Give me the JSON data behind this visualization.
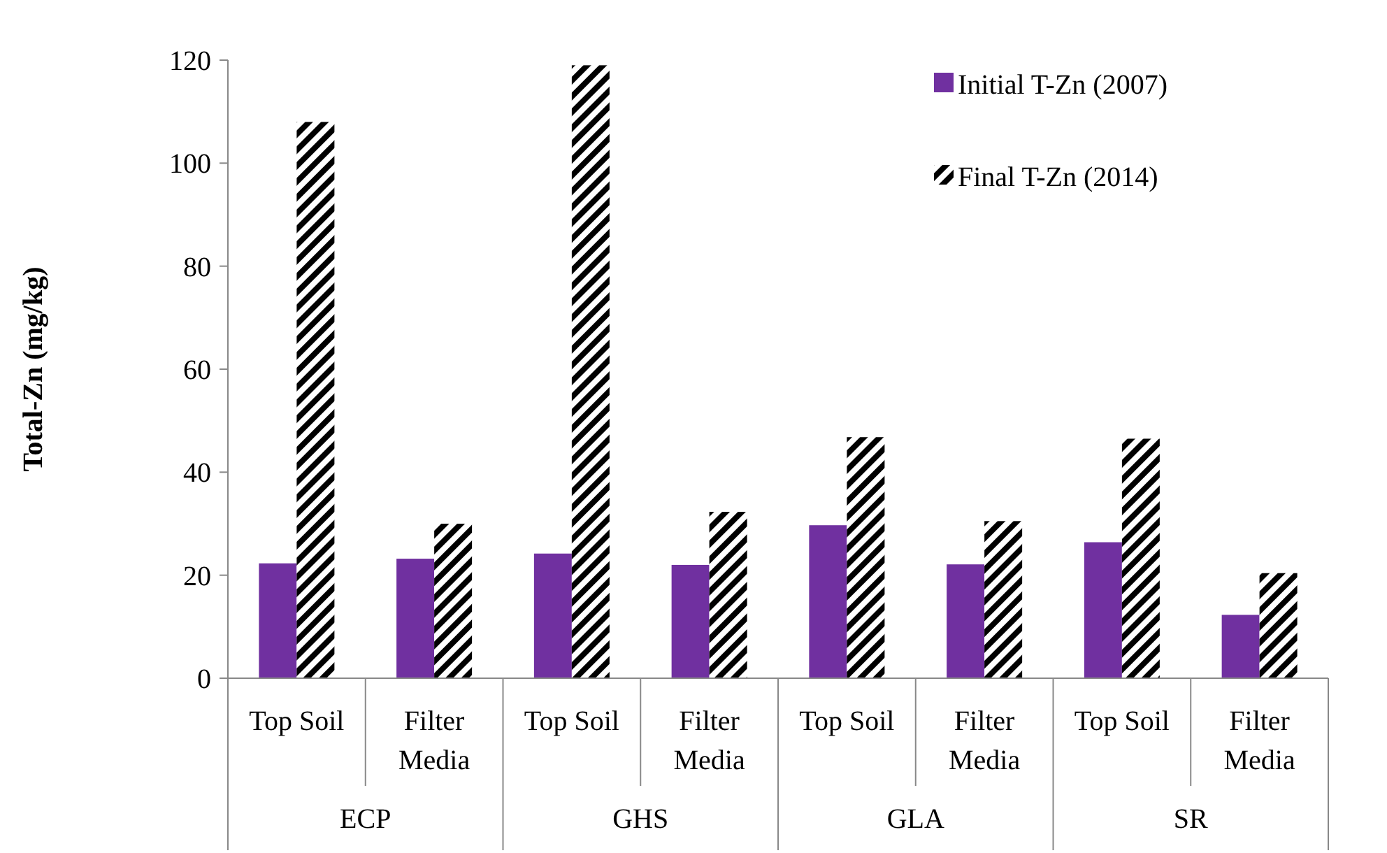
{
  "chart_data": {
    "type": "bar",
    "ylabel": "Total-Zn (mg/kg)",
    "categories": [
      "Top Soil",
      "Filter Media",
      "Top Soil",
      "Filter Media",
      "Top Soil",
      "Filter Media",
      "Top Soil",
      "Filter Media"
    ],
    "annotations": [
      "ECP",
      "GHS",
      "GLA",
      "SR"
    ],
    "series": [
      {
        "name": "Initial T-Zn (2007)",
        "color": "#7030a0",
        "values": [
          22.3,
          23.2,
          24.2,
          22,
          29.7,
          22.1,
          26.4,
          12.3
        ]
      },
      {
        "name": "Final T-Zn (2014)",
        "color": "#000000",
        "values": [
          108,
          30,
          119,
          32.3,
          46.8,
          30.5,
          46.5,
          20.4
        ]
      }
    ],
    "ylim": [
      0,
      120
    ],
    "yticks": [
      0,
      20,
      40,
      60,
      80,
      100,
      120
    ],
    "grid": false,
    "legend": "top right"
  }
}
